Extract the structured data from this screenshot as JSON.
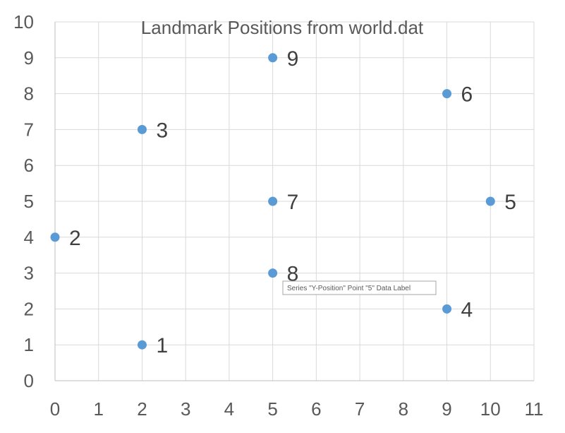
{
  "chart_data": {
    "type": "scatter",
    "title": "Landmark Positions from world.dat",
    "xlabel": "",
    "ylabel": "",
    "xlim": [
      0,
      11
    ],
    "ylim": [
      0,
      10
    ],
    "x_ticks": [
      "0",
      "1",
      "2",
      "3",
      "4",
      "5",
      "6",
      "7",
      "8",
      "9",
      "10",
      "11"
    ],
    "y_ticks": [
      "0",
      "1",
      "2",
      "3",
      "4",
      "5",
      "6",
      "7",
      "8",
      "9",
      "10"
    ],
    "grid": true,
    "legend": "none",
    "color": "#5b9bd5",
    "series": [
      {
        "points": [
          {
            "x": 2,
            "y": 1,
            "label": "1"
          },
          {
            "x": 0,
            "y": 4,
            "label": "2"
          },
          {
            "x": 2,
            "y": 7,
            "label": "3"
          },
          {
            "x": 9,
            "y": 2,
            "label": "4"
          },
          {
            "x": 10,
            "y": 5,
            "label": "5"
          },
          {
            "x": 9,
            "y": 8,
            "label": "6"
          },
          {
            "x": 5,
            "y": 5,
            "label": "7"
          },
          {
            "x": 5,
            "y": 3,
            "label": "8"
          },
          {
            "x": 5,
            "y": 9,
            "label": "9"
          }
        ]
      }
    ],
    "tooltip": "Series \"Y-Position\" Point \"5\" Data Label"
  }
}
